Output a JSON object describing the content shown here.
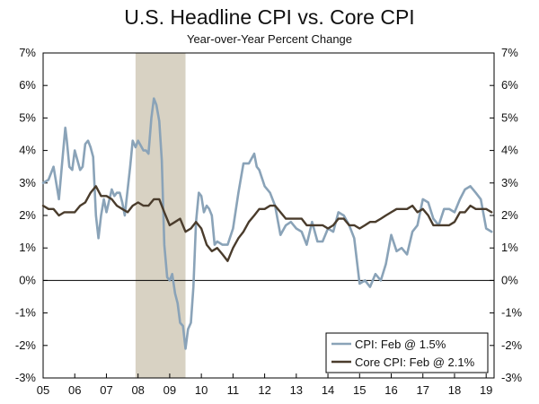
{
  "chart_data": {
    "type": "line",
    "title": "U.S. Headline CPI vs. Core CPI",
    "subtitle": "Year-over-Year Percent Change",
    "xlabel": "",
    "ylabel": "",
    "x_range": [
      2005,
      2019.25
    ],
    "ylim": [
      -3,
      7
    ],
    "y_ticks": [
      7,
      6,
      5,
      4,
      3,
      2,
      1,
      0,
      -1,
      -2,
      -3
    ],
    "y_tick_labels": [
      "7%",
      "6%",
      "5%",
      "4%",
      "3%",
      "2%",
      "1%",
      "0%",
      "-1%",
      "-2%",
      "-3%"
    ],
    "x_ticks": [
      2005,
      2006,
      2007,
      2008,
      2009,
      2010,
      2011,
      2012,
      2013,
      2014,
      2015,
      2016,
      2017,
      2018,
      2019
    ],
    "x_tick_labels": [
      "05",
      "06",
      "07",
      "08",
      "09",
      "10",
      "11",
      "12",
      "13",
      "14",
      "15",
      "16",
      "17",
      "18",
      "19"
    ],
    "recession": {
      "start": 2007.92,
      "end": 2009.5,
      "color": "#d8d2c3"
    },
    "grid": false,
    "legend_position": "bottom-right",
    "series": [
      {
        "name": "CPI: Feb @ 1.5%",
        "color": "#8aa3b8",
        "x": [
          2005.0,
          2005.17,
          2005.33,
          2005.5,
          2005.6,
          2005.7,
          2005.75,
          2005.83,
          2005.92,
          2006.0,
          2006.17,
          2006.25,
          2006.33,
          2006.42,
          2006.5,
          2006.58,
          2006.67,
          2006.75,
          2006.83,
          2006.92,
          2007.0,
          2007.17,
          2007.25,
          2007.33,
          2007.42,
          2007.5,
          2007.58,
          2007.67,
          2007.75,
          2007.83,
          2007.92,
          2008.0,
          2008.17,
          2008.25,
          2008.33,
          2008.42,
          2008.5,
          2008.58,
          2008.67,
          2008.75,
          2008.83,
          2008.92,
          2009.0,
          2009.08,
          2009.17,
          2009.25,
          2009.33,
          2009.42,
          2009.5,
          2009.58,
          2009.67,
          2009.75,
          2009.83,
          2009.92,
          2010.0,
          2010.08,
          2010.17,
          2010.25,
          2010.33,
          2010.42,
          2010.5,
          2010.67,
          2010.83,
          2011.0,
          2011.17,
          2011.33,
          2011.5,
          2011.67,
          2011.75,
          2011.83,
          2012.0,
          2012.17,
          2012.33,
          2012.5,
          2012.67,
          2012.83,
          2013.0,
          2013.17,
          2013.33,
          2013.5,
          2013.67,
          2013.83,
          2014.0,
          2014.17,
          2014.33,
          2014.5,
          2014.67,
          2014.83,
          2015.0,
          2015.17,
          2015.33,
          2015.5,
          2015.67,
          2015.83,
          2016.0,
          2016.17,
          2016.33,
          2016.5,
          2016.67,
          2016.83,
          2017.0,
          2017.17,
          2017.33,
          2017.5,
          2017.67,
          2017.83,
          2018.0,
          2018.17,
          2018.33,
          2018.5,
          2018.67,
          2018.83,
          2019.0,
          2019.17
        ],
        "values": [
          3.0,
          3.1,
          3.5,
          2.5,
          3.6,
          4.7,
          4.3,
          3.5,
          3.4,
          4.0,
          3.4,
          3.5,
          4.2,
          4.3,
          4.1,
          3.8,
          2.0,
          1.3,
          2.0,
          2.5,
          2.1,
          2.8,
          2.6,
          2.7,
          2.7,
          2.4,
          2.0,
          2.8,
          3.5,
          4.3,
          4.1,
          4.3,
          4.0,
          4.0,
          3.9,
          5.0,
          5.6,
          5.4,
          4.9,
          3.7,
          1.1,
          0.1,
          0.0,
          0.2,
          -0.4,
          -0.7,
          -1.3,
          -1.4,
          -2.1,
          -1.5,
          -1.3,
          -0.2,
          1.8,
          2.7,
          2.6,
          2.1,
          2.3,
          2.2,
          2.0,
          1.1,
          1.2,
          1.1,
          1.1,
          1.6,
          2.7,
          3.6,
          3.6,
          3.9,
          3.5,
          3.4,
          2.9,
          2.7,
          2.3,
          1.4,
          1.7,
          1.8,
          1.6,
          1.5,
          1.1,
          1.8,
          1.2,
          1.2,
          1.6,
          1.5,
          2.1,
          2.0,
          1.7,
          1.3,
          -0.1,
          0.0,
          -0.2,
          0.2,
          0.0,
          0.5,
          1.4,
          0.9,
          1.0,
          0.8,
          1.5,
          1.7,
          2.5,
          2.4,
          1.9,
          1.7,
          2.2,
          2.2,
          2.1,
          2.5,
          2.8,
          2.9,
          2.7,
          2.5,
          1.6,
          1.5
        ]
      },
      {
        "name": "Core CPI: Feb @ 2.1%",
        "color": "#4a3c2c",
        "x": [
          2005.0,
          2005.17,
          2005.33,
          2005.5,
          2005.67,
          2005.83,
          2006.0,
          2006.17,
          2006.33,
          2006.5,
          2006.67,
          2006.83,
          2007.0,
          2007.17,
          2007.33,
          2007.5,
          2007.67,
          2007.83,
          2008.0,
          2008.17,
          2008.33,
          2008.5,
          2008.67,
          2008.83,
          2009.0,
          2009.17,
          2009.33,
          2009.5,
          2009.67,
          2009.83,
          2010.0,
          2010.17,
          2010.33,
          2010.5,
          2010.67,
          2010.83,
          2011.0,
          2011.17,
          2011.33,
          2011.5,
          2011.67,
          2011.83,
          2012.0,
          2012.17,
          2012.33,
          2012.5,
          2012.67,
          2012.83,
          2013.0,
          2013.17,
          2013.33,
          2013.5,
          2013.67,
          2013.83,
          2014.0,
          2014.17,
          2014.33,
          2014.5,
          2014.67,
          2014.83,
          2015.0,
          2015.17,
          2015.33,
          2015.5,
          2015.67,
          2015.83,
          2016.0,
          2016.17,
          2016.33,
          2016.5,
          2016.67,
          2016.83,
          2017.0,
          2017.17,
          2017.33,
          2017.5,
          2017.67,
          2017.83,
          2018.0,
          2018.17,
          2018.33,
          2018.5,
          2018.67,
          2018.83,
          2019.0,
          2019.17
        ],
        "values": [
          2.3,
          2.2,
          2.2,
          2.0,
          2.1,
          2.1,
          2.1,
          2.3,
          2.4,
          2.7,
          2.9,
          2.6,
          2.6,
          2.5,
          2.3,
          2.2,
          2.1,
          2.3,
          2.4,
          2.3,
          2.3,
          2.5,
          2.5,
          2.1,
          1.7,
          1.8,
          1.9,
          1.5,
          1.6,
          1.8,
          1.6,
          1.1,
          0.9,
          1.0,
          0.8,
          0.6,
          1.0,
          1.3,
          1.5,
          1.8,
          2.0,
          2.2,
          2.2,
          2.3,
          2.3,
          2.1,
          1.9,
          1.9,
          1.9,
          1.9,
          1.7,
          1.7,
          1.7,
          1.7,
          1.6,
          1.7,
          1.9,
          1.9,
          1.7,
          1.7,
          1.6,
          1.7,
          1.8,
          1.8,
          1.9,
          2.0,
          2.1,
          2.2,
          2.2,
          2.2,
          2.3,
          2.1,
          2.2,
          2.0,
          1.7,
          1.7,
          1.7,
          1.7,
          1.8,
          2.1,
          2.1,
          2.3,
          2.2,
          2.2,
          2.2,
          2.1
        ]
      }
    ]
  }
}
